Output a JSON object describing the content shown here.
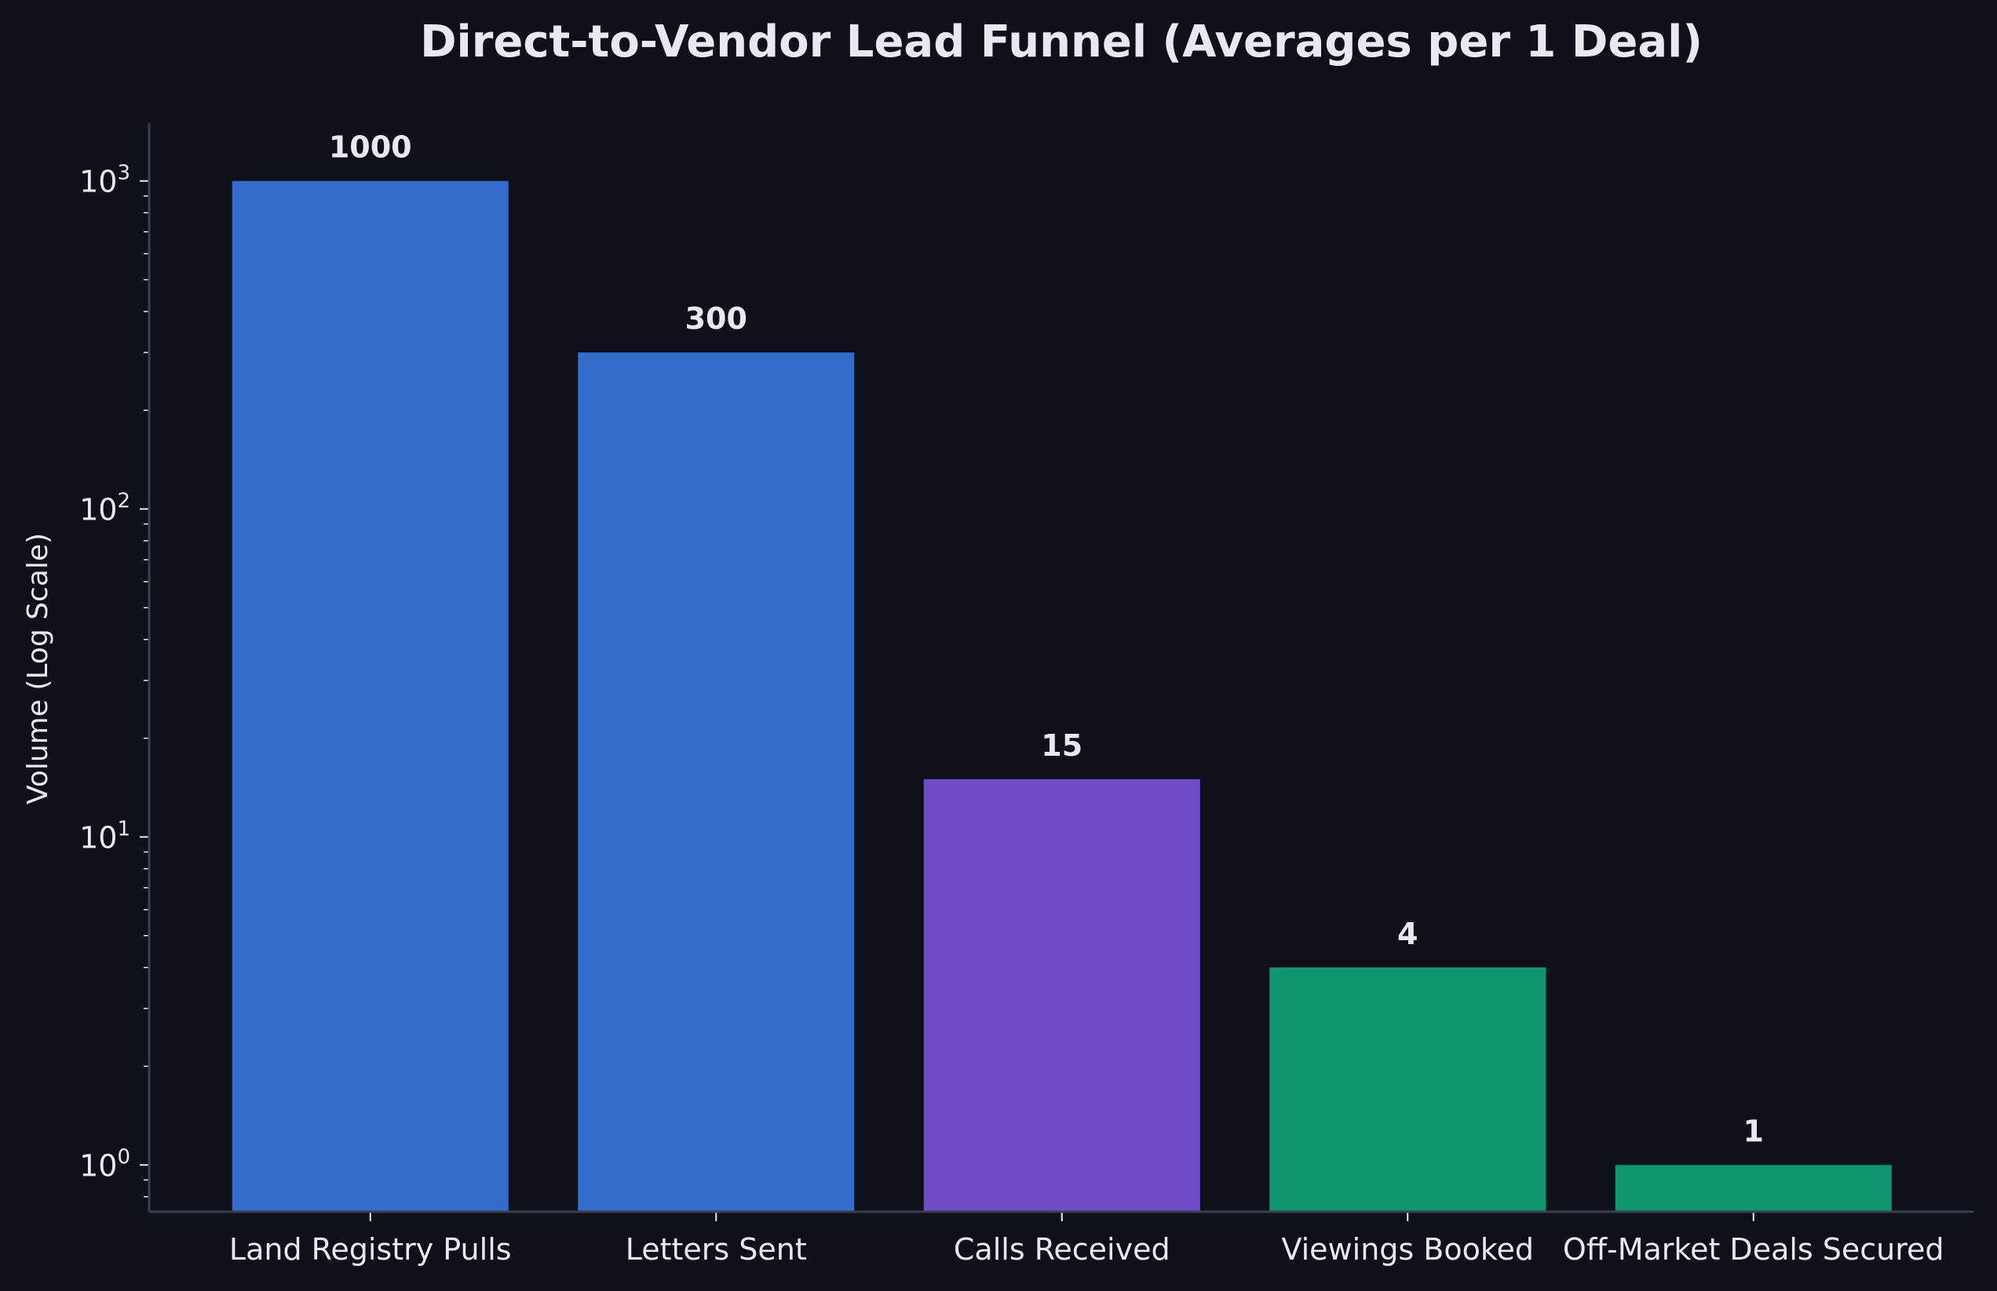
{
  "chart_data": {
    "type": "bar",
    "title": "Direct-to-Vendor Lead Funnel (Averages per 1 Deal)",
    "ylabel": "Volume (Log Scale)",
    "xlabel": "",
    "yscale": "log",
    "ylim": [
      0.72,
      1500
    ],
    "grid": false,
    "categories": [
      "Land Registry Pulls",
      "Letters Sent",
      "Calls Received",
      "Viewings Booked",
      "Off-Market Deals Secured"
    ],
    "values": [
      1000,
      300,
      15,
      4,
      1
    ],
    "data_labels": [
      "1000",
      "300",
      "15",
      "4",
      "1"
    ],
    "bar_colors": [
      "#346ccc",
      "#346ccc",
      "#704dc8",
      "#10966e",
      "#10966e"
    ],
    "y_ticks": [
      {
        "base": "10",
        "exp": "0",
        "value": 1
      },
      {
        "base": "10",
        "exp": "1",
        "value": 10
      },
      {
        "base": "10",
        "exp": "2",
        "value": 100
      },
      {
        "base": "10",
        "exp": "3",
        "value": 1000
      }
    ]
  },
  "colors": {
    "background": "#0f111a",
    "axis": "#3a4150",
    "text": "#e6e9f0"
  }
}
